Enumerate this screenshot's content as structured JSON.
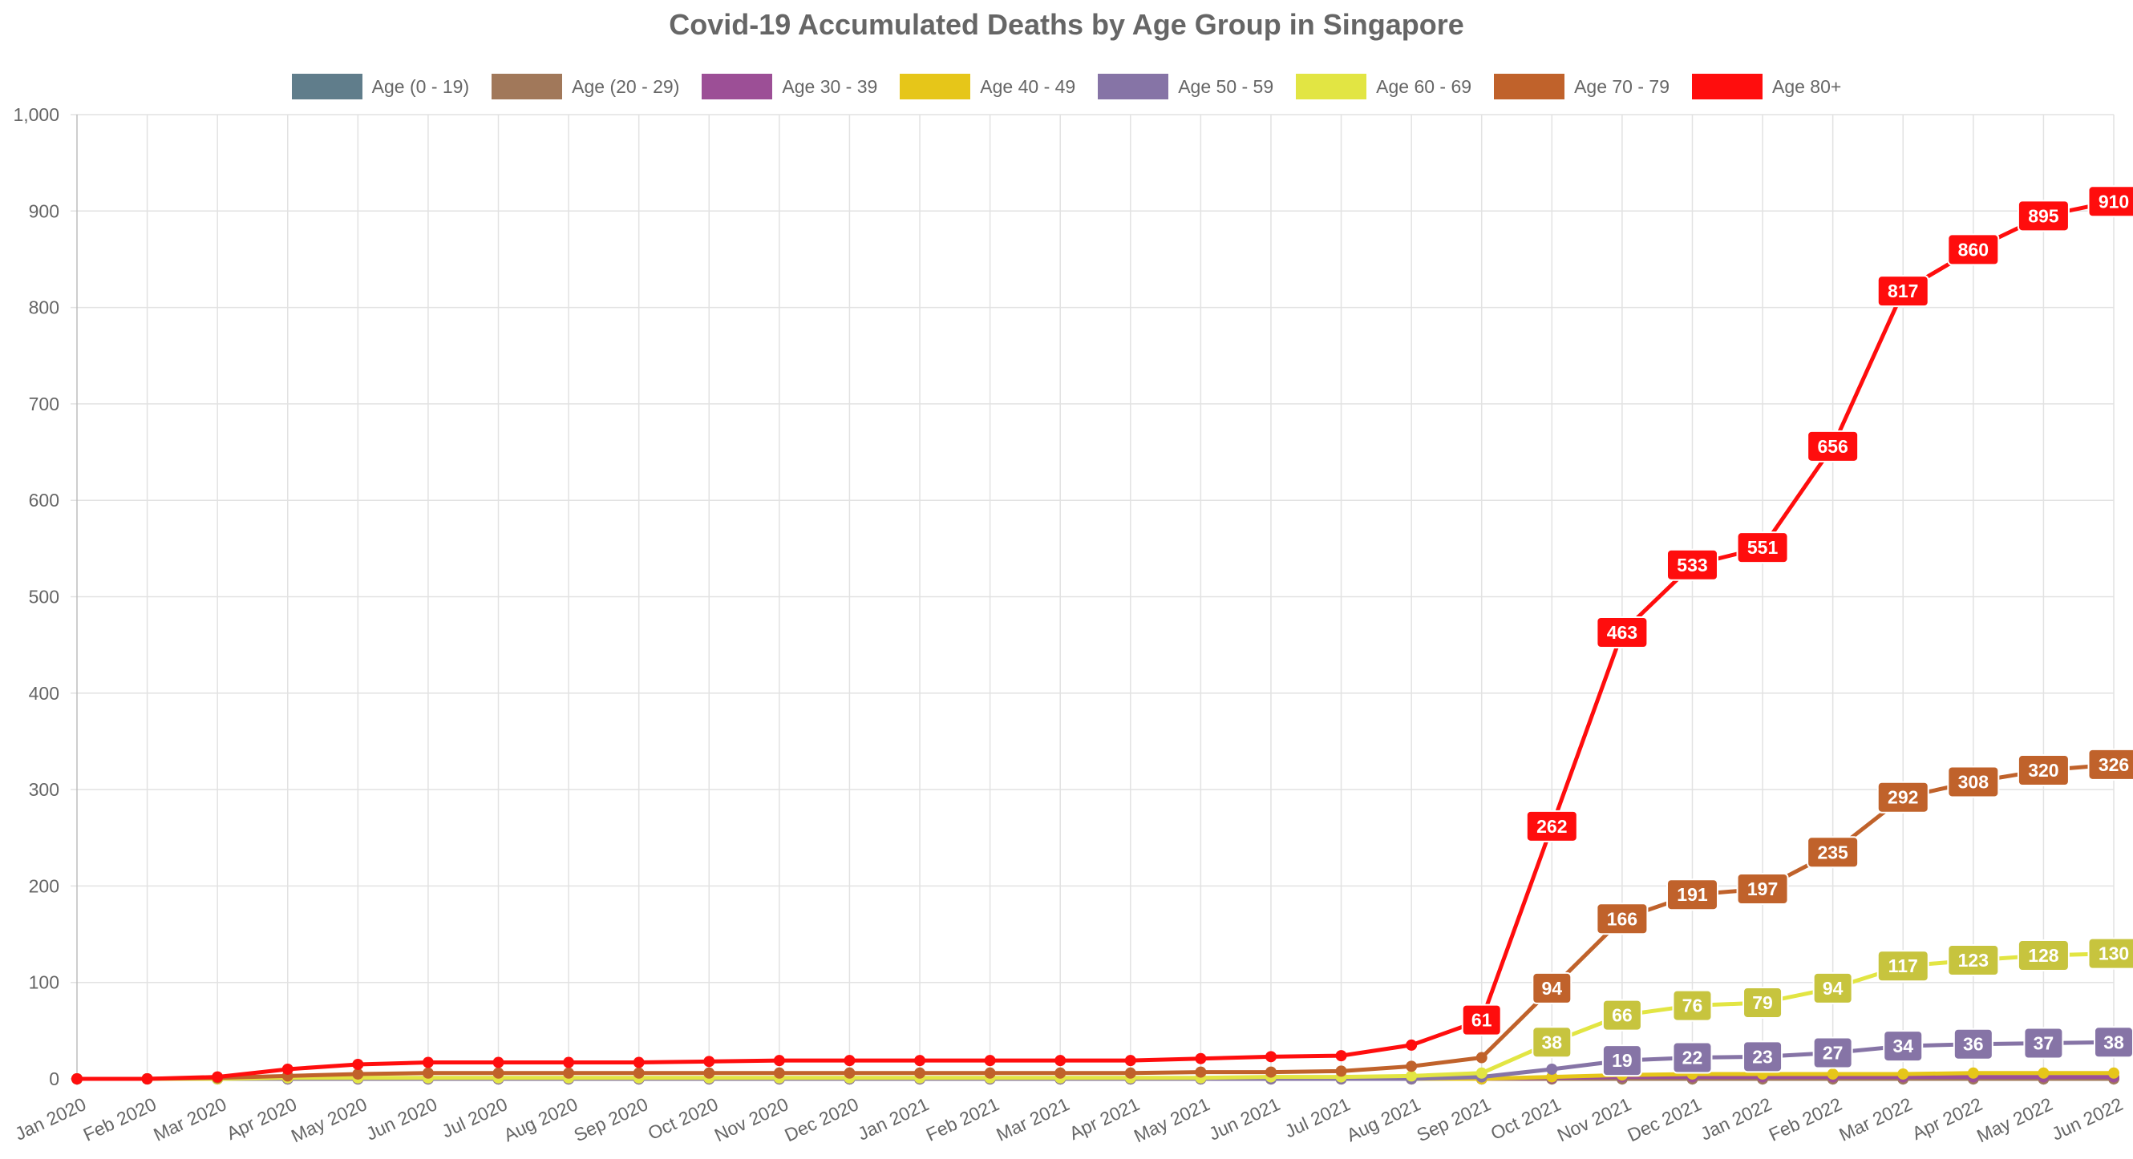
{
  "chart_data": {
    "type": "line",
    "title": "Covid-19 Accumulated Deaths by Age Group in Singapore",
    "xlabel": "",
    "ylabel": "",
    "ylim": [
      0,
      1000
    ],
    "yticks": [
      0,
      100,
      200,
      300,
      400,
      500,
      600,
      700,
      800,
      900,
      1000
    ],
    "ytick_labels": [
      "0",
      "100",
      "200",
      "300",
      "400",
      "500",
      "600",
      "700",
      "800",
      "900",
      "1,000"
    ],
    "grid": true,
    "legend_position": "top",
    "categories": [
      "Jan 2020",
      "Feb 2020",
      "Mar 2020",
      "Apr 2020",
      "May 2020",
      "Jun 2020",
      "Jul 2020",
      "Aug 2020",
      "Sep 2020",
      "Oct 2020",
      "Nov 2020",
      "Dec 2020",
      "Jan 2021",
      "Feb 2021",
      "Mar 2021",
      "Apr 2021",
      "May 2021",
      "Jun 2021",
      "Jul 2021",
      "Aug 2021",
      "Sep 2021",
      "Oct 2021",
      "Nov 2021",
      "Dec 2021",
      "Jan 2022",
      "Feb 2022",
      "Mar 2022",
      "Apr 2022",
      "May 2022",
      "Jun 2022"
    ],
    "series": [
      {
        "name": "Age (0 - 19)",
        "color": "#607D8B",
        "label_from": -1,
        "values": [
          0,
          0,
          0,
          0,
          0,
          0,
          0,
          0,
          0,
          0,
          0,
          0,
          0,
          0,
          0,
          0,
          0,
          0,
          0,
          0,
          0,
          0,
          0,
          0,
          0,
          0,
          0,
          0,
          0,
          1
        ]
      },
      {
        "name": "Age (20 - 29)",
        "color": "#A1785A",
        "label_from": -1,
        "values": [
          0,
          0,
          0,
          0,
          0,
          0,
          0,
          0,
          0,
          0,
          0,
          0,
          0,
          0,
          0,
          0,
          0,
          0,
          0,
          0,
          0,
          0,
          0,
          0,
          0,
          0,
          0,
          0,
          0,
          0
        ]
      },
      {
        "name": "Age 30 - 39",
        "color": "#9C4F96",
        "label_from": -1,
        "values": [
          0,
          0,
          0,
          0,
          0,
          0,
          0,
          0,
          0,
          0,
          0,
          0,
          0,
          0,
          0,
          0,
          0,
          0,
          0,
          0,
          0,
          1,
          2,
          2,
          2,
          2,
          2,
          2,
          2,
          2
        ]
      },
      {
        "name": "Age 40 - 49",
        "color": "#E6C619",
        "label_from": -1,
        "values": [
          0,
          0,
          0,
          0,
          0,
          0,
          0,
          0,
          0,
          0,
          0,
          0,
          0,
          0,
          0,
          0,
          0,
          0,
          0,
          0,
          0,
          2,
          4,
          5,
          5,
          5,
          5,
          6,
          6,
          6
        ]
      },
      {
        "name": "Age 50 - 59",
        "color": "#8674A6",
        "label_from": 22,
        "values": [
          0,
          0,
          0,
          0,
          0,
          0,
          0,
          0,
          0,
          0,
          0,
          0,
          0,
          0,
          0,
          0,
          0,
          0,
          0,
          0,
          2,
          10,
          19,
          22,
          23,
          27,
          34,
          36,
          37,
          38
        ]
      },
      {
        "name": "Age 60 - 69",
        "color": "#E2E543",
        "label_color": "#C7C43E",
        "label_from": 21,
        "values": [
          0,
          0,
          0,
          1,
          1,
          1,
          1,
          1,
          1,
          1,
          1,
          1,
          1,
          1,
          1,
          1,
          1,
          2,
          2,
          3,
          6,
          38,
          66,
          76,
          79,
          94,
          117,
          123,
          128,
          130
        ]
      },
      {
        "name": "Age 70 - 79",
        "color": "#C0622B",
        "label_from": 21,
        "values": [
          0,
          0,
          1,
          3,
          5,
          6,
          6,
          6,
          6,
          6,
          6,
          6,
          6,
          6,
          6,
          6,
          7,
          7,
          8,
          13,
          22,
          94,
          166,
          191,
          197,
          235,
          292,
          308,
          320,
          326
        ]
      },
      {
        "name": "Age 80+",
        "color": "#FF0D0D",
        "label_from": 20,
        "values": [
          0,
          0,
          2,
          10,
          15,
          17,
          17,
          17,
          17,
          18,
          19,
          19,
          19,
          19,
          19,
          19,
          21,
          23,
          24,
          35,
          61,
          262,
          463,
          533,
          551,
          656,
          817,
          860,
          895,
          910
        ]
      }
    ]
  }
}
